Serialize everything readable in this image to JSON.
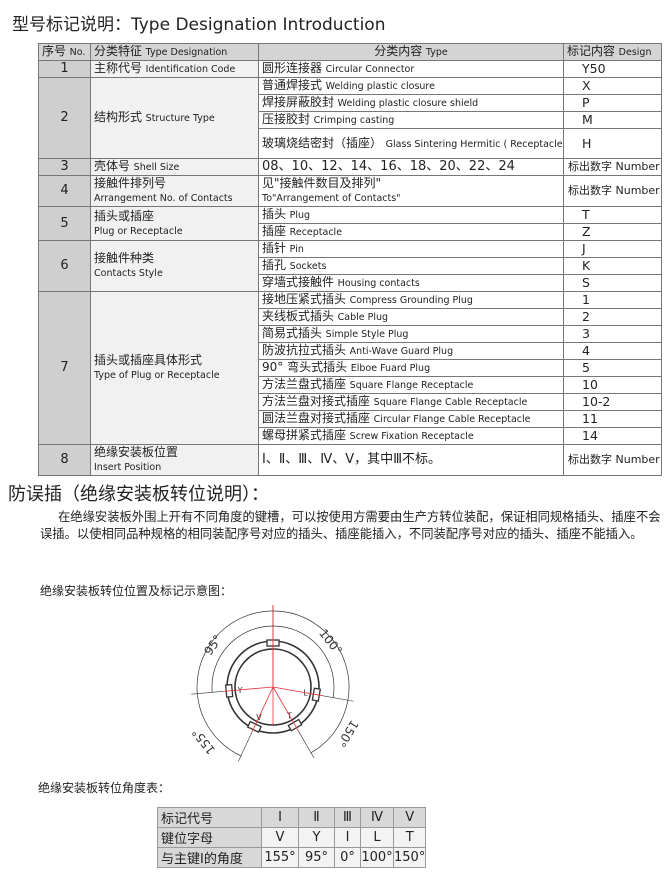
{
  "title": "型号标记说明：Type Designation Introduction",
  "table": {
    "headers": [
      {
        "cn": "序号",
        "en": "No."
      },
      {
        "cn": "分类特征",
        "en": "Type Designation"
      },
      {
        "cn": "分类内容",
        "en": "Type"
      },
      {
        "cn": "标记内容",
        "en": "Design"
      }
    ],
    "rows": [
      {
        "no": "1",
        "cn": "主称代号",
        "en": "Identification Code",
        "items": [
          {
            "cn": "圆形连接器",
            "en": "Circular Connector",
            "code": "Y50"
          }
        ]
      },
      {
        "no": "2",
        "cn": "结构形式",
        "en": "Structure Type",
        "items": [
          {
            "cn": "普通焊接式",
            "en": "Welding plastic closure",
            "code": "X"
          },
          {
            "cn": "焊接屏蔽胶封",
            "en": "Welding plastic closure shield",
            "code": "P"
          },
          {
            "cn": "压接胶封",
            "en": "Crimping casting",
            "code": "M"
          },
          {
            "cn": "玻璃烧结密封（插座）",
            "en": "Glass Sintering Hermitic ( Receptacle )",
            "code": "H"
          }
        ]
      },
      {
        "no": "3",
        "cn": "壳体号",
        "en": "Shell Size",
        "items": [
          {
            "cn": "08、10、12、14、16、18、20、22、24",
            "en": "",
            "code": "标出数字 Number"
          }
        ]
      },
      {
        "no": "4",
        "cn": "接触件排列号",
        "en": "Arrangement No. of Contacts",
        "items": [
          {
            "cn": "见\"接触件数目及排列\"",
            "en": "To\"Arrangement of Contacts\"",
            "code": "标出数字 Number"
          }
        ]
      },
      {
        "no": "5",
        "cn": "插头或插座",
        "en": "Plug or Receptacle",
        "items": [
          {
            "cn": "插头",
            "en": "Plug",
            "code": "T"
          },
          {
            "cn": "插座",
            "en": "Receptacle",
            "code": "Z"
          }
        ]
      },
      {
        "no": "6",
        "cn": "接触件种类",
        "en": "Contacts Style",
        "items": [
          {
            "cn": "插针",
            "en": "Pin",
            "code": "J"
          },
          {
            "cn": "插孔",
            "en": "Sockets",
            "code": "K"
          },
          {
            "cn": "穿墙式接触件",
            "en": "Housing contacts",
            "code": "S"
          }
        ]
      },
      {
        "no": "7",
        "cn": "插头或插座具体形式",
        "en": "Type of Plug or Receptacle",
        "items": [
          {
            "cn": "接地压紧式插头",
            "en": "Compress Grounding Plug",
            "code": "1"
          },
          {
            "cn": "夹线板式插头",
            "en": "Cable Plug",
            "code": "2"
          },
          {
            "cn": "简易式插头",
            "en": "Simple Style Plug",
            "code": "3"
          },
          {
            "cn": "防波抗拉式插头",
            "en": "Anti-Wave Guard Plug",
            "code": "4"
          },
          {
            "cn": "90° 弯头式插头",
            "en": "Elboe Fuard Plug",
            "code": "5"
          },
          {
            "cn": "方法兰盘式插座",
            "en": "Square Flange Receptacle",
            "code": "10"
          },
          {
            "cn": "方法兰盘对接式插座",
            "en": "Square Flange Cable Receptacle",
            "code": "10-2"
          },
          {
            "cn": "圆法兰盘对接式插座",
            "en": "Circular Flange Cable Receptacle",
            "code": "11"
          },
          {
            "cn": "螺母拼紧式插座",
            "en": "Screw Fixation Receptacle",
            "code": "14"
          }
        ]
      },
      {
        "no": "8",
        "cn": "绝缘安装板位置",
        "en": "Insert Position",
        "items": [
          {
            "cn": "Ⅰ、Ⅱ、Ⅲ、Ⅳ、Ⅴ，其中Ⅲ不标。",
            "en": "",
            "code": "标出数字 Number"
          }
        ]
      }
    ]
  },
  "section_title": "防误插（绝缘安装板转位说明）：",
  "paragraph": "在绝缘安装板外围上开有不同角度的键槽，可以按使用方需要由生产方转位装配，保证相同规格插头、插座不会误插。以使相同品种规格的相同装配序号对应的插头、插座能插入，不同装配序号对应的插头、插座不能插入。",
  "diagram_caption": "绝缘安装板转位位置及标记示意图：",
  "diagram": {
    "main_key_label": "I",
    "keys": [
      {
        "letter": "Y",
        "angle": -95,
        "label": "95°"
      },
      {
        "letter": "V",
        "angle": -155,
        "label": "155°"
      },
      {
        "letter": "L",
        "angle": 100,
        "label": "100°"
      },
      {
        "letter": "T",
        "angle": 150,
        "label": "150°"
      }
    ],
    "line_color": "#e8323c"
  },
  "angle_table_caption": "绝缘安装板转位角度表：",
  "angle_table": {
    "row_labels": [
      "标记代号",
      "键位字母",
      "与主键Ⅰ的角度"
    ],
    "positions": [
      "Ⅰ",
      "Ⅱ",
      "Ⅲ",
      "Ⅳ",
      "Ⅴ"
    ],
    "letters": [
      "V",
      "Y",
      "I",
      "L",
      "T"
    ],
    "angles": [
      "155°",
      "95°",
      "0°",
      "100°",
      "150°"
    ]
  }
}
